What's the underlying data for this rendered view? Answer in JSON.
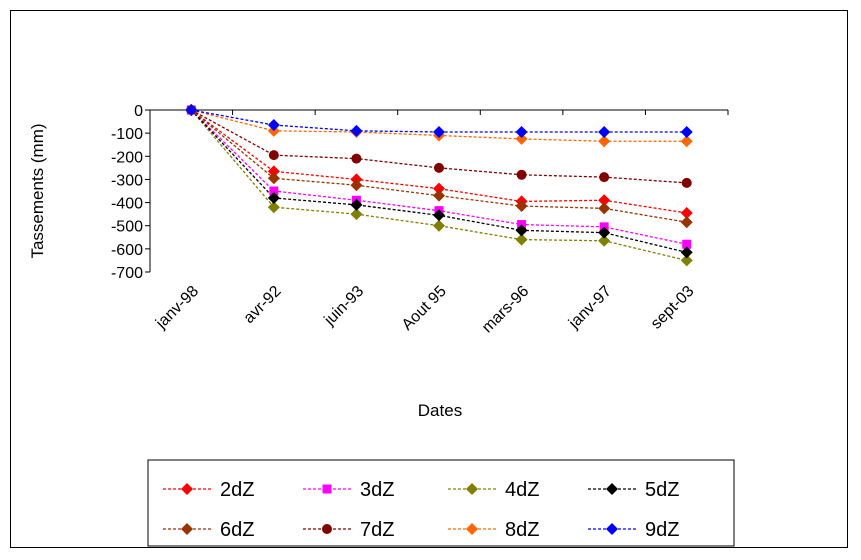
{
  "chart_data": {
    "type": "line",
    "categories": [
      "janv-98",
      "avr-92",
      "juin-93",
      "Aout 95",
      "mars-96",
      "janv-97",
      "sept-03"
    ],
    "xlabel": "Dates",
    "ylabel": "Tassements (mm)",
    "ylim": [
      -700,
      0
    ],
    "yticks": [
      0,
      -100,
      -200,
      -300,
      -400,
      -500,
      -600,
      -700
    ],
    "grid": false,
    "legend_position": "bottom",
    "series": [
      {
        "name": "2dZ",
        "color": "#ff0000",
        "marker": "diamond",
        "values": [
          0,
          -265,
          -300,
          -340,
          -395,
          -390,
          -445
        ]
      },
      {
        "name": "3dZ",
        "color": "#ff00ff",
        "marker": "square",
        "values": [
          0,
          -350,
          -390,
          -435,
          -495,
          -505,
          -580
        ]
      },
      {
        "name": "4dZ",
        "color": "#808000",
        "marker": "diamond",
        "values": [
          0,
          -420,
          -450,
          -500,
          -560,
          -565,
          -650
        ]
      },
      {
        "name": "5dZ",
        "color": "#000000",
        "marker": "diamond",
        "values": [
          0,
          -380,
          -410,
          -455,
          -520,
          -530,
          -615
        ]
      },
      {
        "name": "6dZ",
        "color": "#993300",
        "marker": "diamond",
        "values": [
          0,
          -295,
          -325,
          -370,
          -415,
          -425,
          -485
        ]
      },
      {
        "name": "7dZ",
        "color": "#800000",
        "marker": "circle",
        "values": [
          0,
          -195,
          -210,
          -250,
          -280,
          -290,
          -315
        ]
      },
      {
        "name": "8dZ",
        "color": "#ff6600",
        "marker": "diamond",
        "values": [
          0,
          -90,
          -95,
          -110,
          -125,
          -135,
          -135
        ]
      },
      {
        "name": "9dZ",
        "color": "#0000ff",
        "marker": "diamond",
        "values": [
          0,
          -65,
          -90,
          -95,
          -95,
          -95,
          -95
        ]
      }
    ]
  }
}
